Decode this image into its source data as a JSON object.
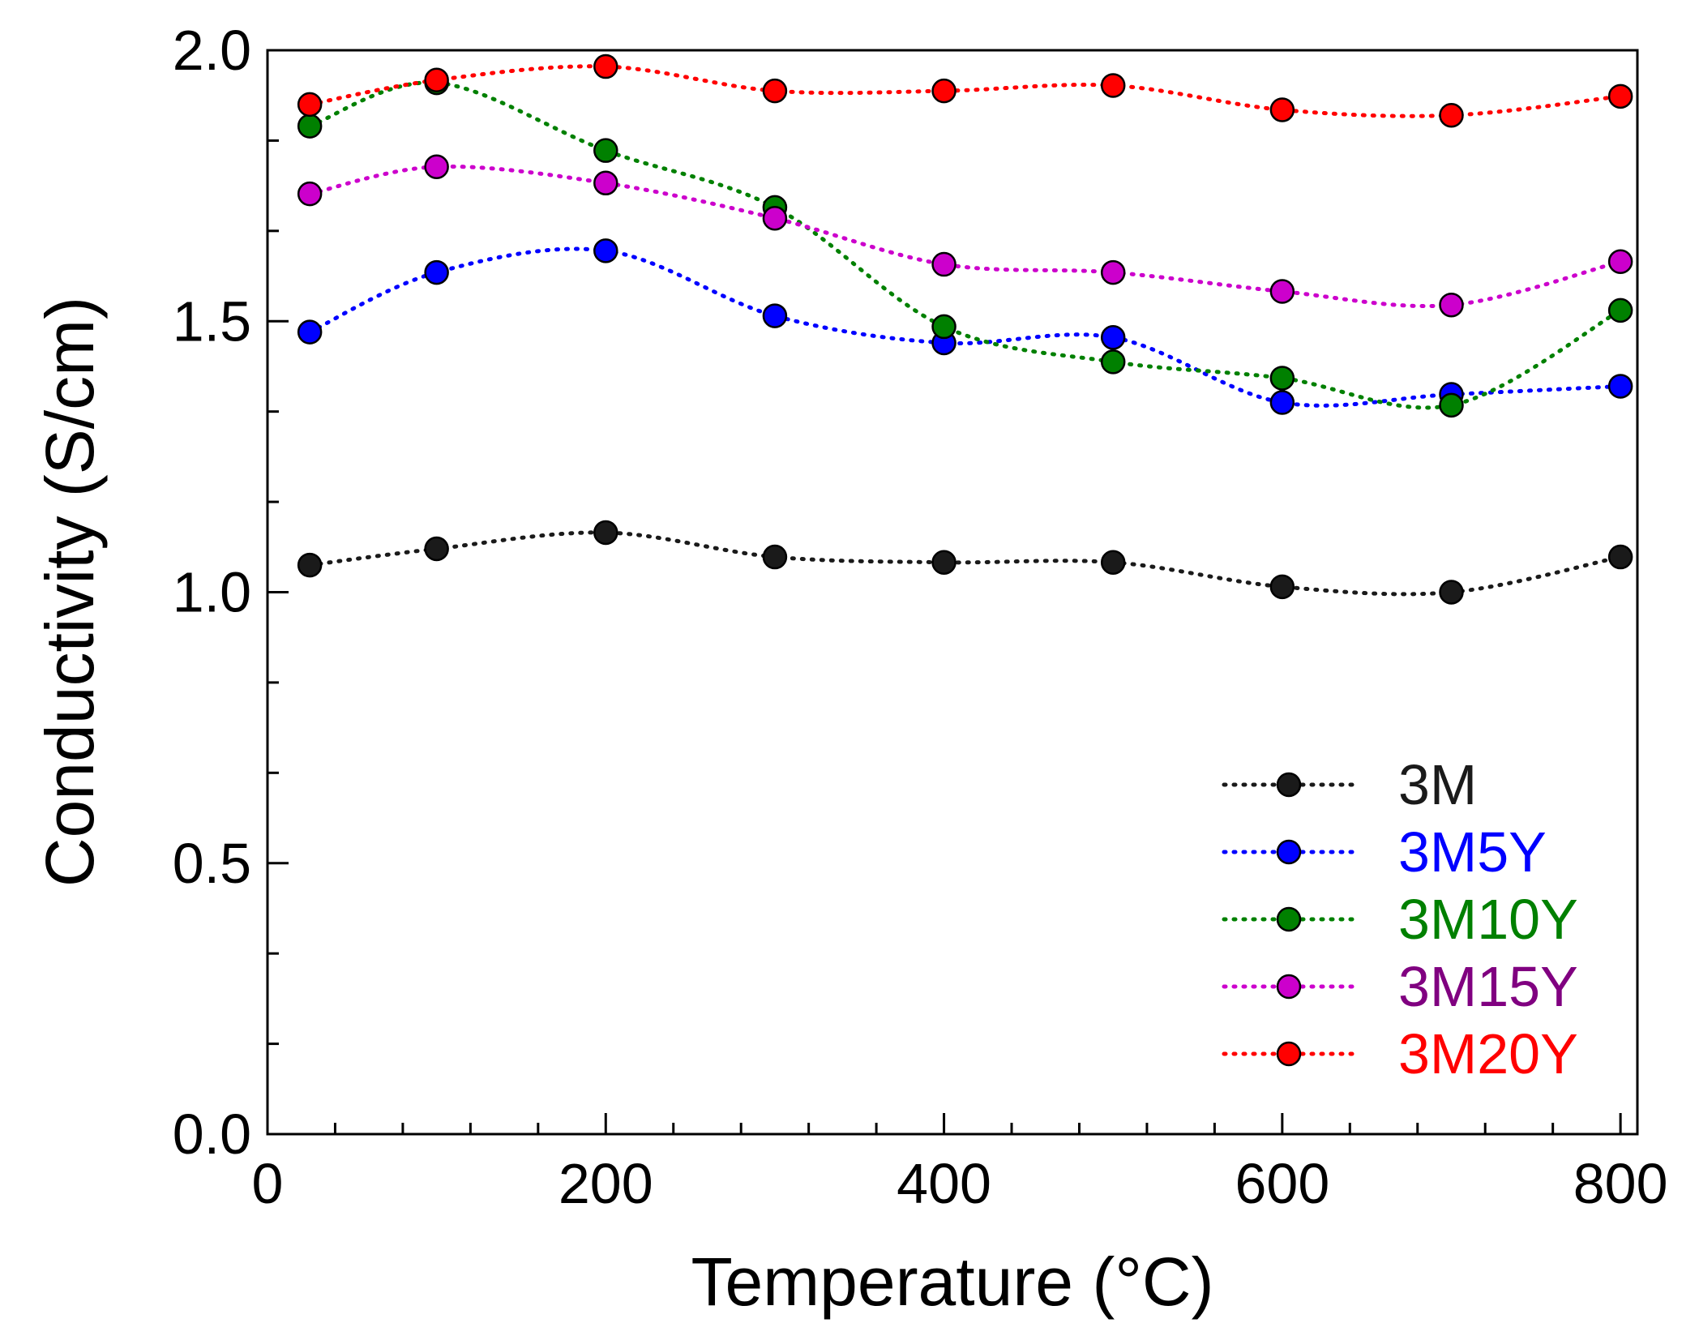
{
  "chart_data": {
    "type": "line",
    "xlabel": "Temperature (°C)",
    "ylabel": "Conductivity (S/cm)",
    "xlim": [
      0,
      810
    ],
    "ylim": [
      0,
      2.0
    ],
    "x_ticks": [
      0,
      200,
      400,
      600,
      800
    ],
    "y_ticks": [
      0.0,
      0.5,
      1.0,
      1.5,
      2.0
    ],
    "x_tick_labels": [
      "0",
      "200",
      "400",
      "600",
      "800"
    ],
    "y_tick_labels": [
      "0.0",
      "0.5",
      "1.0",
      "1.5",
      "2.0"
    ],
    "x_minor_step": 40,
    "y_minor_step": 0.1667,
    "legend_position": "bottom-right",
    "x": [
      25,
      100,
      200,
      300,
      400,
      500,
      600,
      700,
      800
    ],
    "series": [
      {
        "name": "3M",
        "color": "#1a1a1a",
        "values": [
          1.05,
          1.08,
          1.11,
          1.065,
          1.055,
          1.055,
          1.01,
          1.0,
          1.065
        ]
      },
      {
        "name": "3M5Y",
        "color": "#0000ff",
        "values": [
          1.48,
          1.59,
          1.63,
          1.51,
          1.46,
          1.47,
          1.35,
          1.365,
          1.38
        ]
      },
      {
        "name": "3M10Y",
        "color": "#008000",
        "values": [
          1.86,
          1.94,
          1.815,
          1.71,
          1.49,
          1.425,
          1.395,
          1.345,
          1.52
        ]
      },
      {
        "name": "3M15Y",
        "color": "#cc00cc",
        "label_color": "#800080",
        "values": [
          1.735,
          1.785,
          1.755,
          1.69,
          1.605,
          1.59,
          1.555,
          1.53,
          1.61
        ]
      },
      {
        "name": "3M20Y",
        "color": "#ff0000",
        "values": [
          1.9,
          1.945,
          1.97,
          1.925,
          1.925,
          1.935,
          1.89,
          1.88,
          1.915
        ]
      }
    ]
  }
}
